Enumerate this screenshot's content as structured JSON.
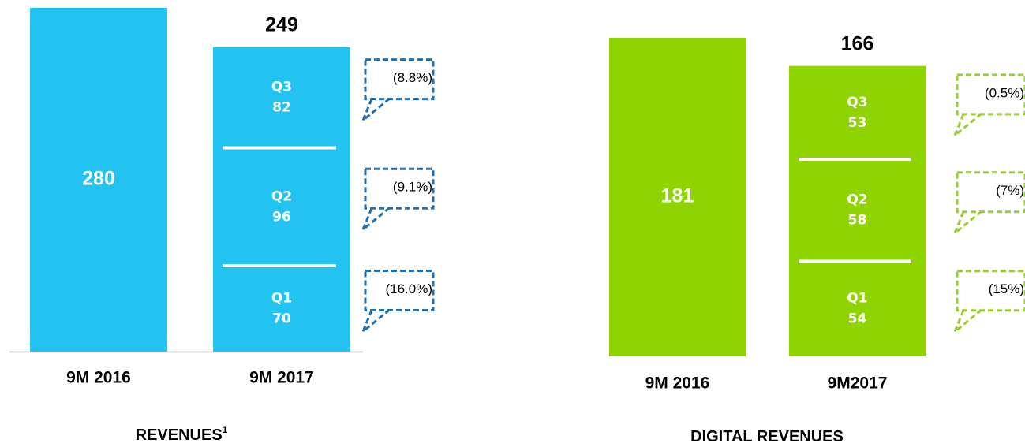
{
  "chart_data": [
    {
      "type": "stacked-bar",
      "title": "REVENUES",
      "title_note": "1",
      "color": "#22c3f0",
      "callout_color": "#1f6fb4",
      "axis_line": true,
      "ylim": [
        0,
        280
      ],
      "single": {
        "category": "9M 2016",
        "value": 280
      },
      "stacked": {
        "category": "9M 2017",
        "total": 249,
        "segments": [
          {
            "name": "Q1",
            "value": 70,
            "change": "(16.0%)"
          },
          {
            "name": "Q2",
            "value": 96,
            "change": "(9.1%)"
          },
          {
            "name": "Q3",
            "value": 82,
            "change": "(8.8%)"
          }
        ]
      }
    },
    {
      "type": "stacked-bar",
      "title": "DIGITAL REVENUES",
      "color": "#8fd400",
      "callout_color": "#9acd32",
      "axis_line": false,
      "ylim": [
        0,
        181
      ],
      "single": {
        "category": "9M 2016",
        "value": 181
      },
      "stacked": {
        "category": "9M2017",
        "total": 166,
        "segments": [
          {
            "name": "Q1",
            "value": 54,
            "change": "(15%)"
          },
          {
            "name": "Q2",
            "value": 58,
            "change": "(7%)"
          },
          {
            "name": "Q3",
            "value": 53,
            "change": "(0.5%)"
          }
        ]
      }
    }
  ]
}
